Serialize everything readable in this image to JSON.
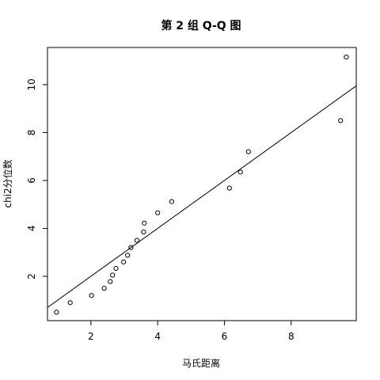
{
  "chart_data": {
    "type": "scatter",
    "title": "第 2 组 Q-Q 图",
    "xlabel": "马氏距离",
    "ylabel": "chi2分位数",
    "xlim": [
      0.7,
      9.95
    ],
    "ylim": [
      0.15,
      11.55
    ],
    "xticks": [
      2,
      4,
      6,
      8
    ],
    "yticks": [
      2,
      4,
      6,
      8,
      10
    ],
    "grid": false,
    "points": [
      {
        "x": 0.97,
        "y": 0.5
      },
      {
        "x": 1.38,
        "y": 0.9
      },
      {
        "x": 2.02,
        "y": 1.2
      },
      {
        "x": 2.4,
        "y": 1.5
      },
      {
        "x": 2.58,
        "y": 1.78
      },
      {
        "x": 2.65,
        "y": 2.05
      },
      {
        "x": 2.75,
        "y": 2.33
      },
      {
        "x": 2.98,
        "y": 2.6
      },
      {
        "x": 3.1,
        "y": 2.88
      },
      {
        "x": 3.2,
        "y": 3.2
      },
      {
        "x": 3.38,
        "y": 3.5
      },
      {
        "x": 3.58,
        "y": 3.85
      },
      {
        "x": 3.6,
        "y": 4.22
      },
      {
        "x": 4.0,
        "y": 4.65
      },
      {
        "x": 4.42,
        "y": 5.12
      },
      {
        "x": 6.15,
        "y": 5.68
      },
      {
        "x": 6.48,
        "y": 6.35
      },
      {
        "x": 6.72,
        "y": 7.2
      },
      {
        "x": 9.48,
        "y": 8.5
      },
      {
        "x": 9.65,
        "y": 11.15
      }
    ],
    "reference_line": {
      "intercept": 0.0,
      "slope": 1.0
    }
  }
}
